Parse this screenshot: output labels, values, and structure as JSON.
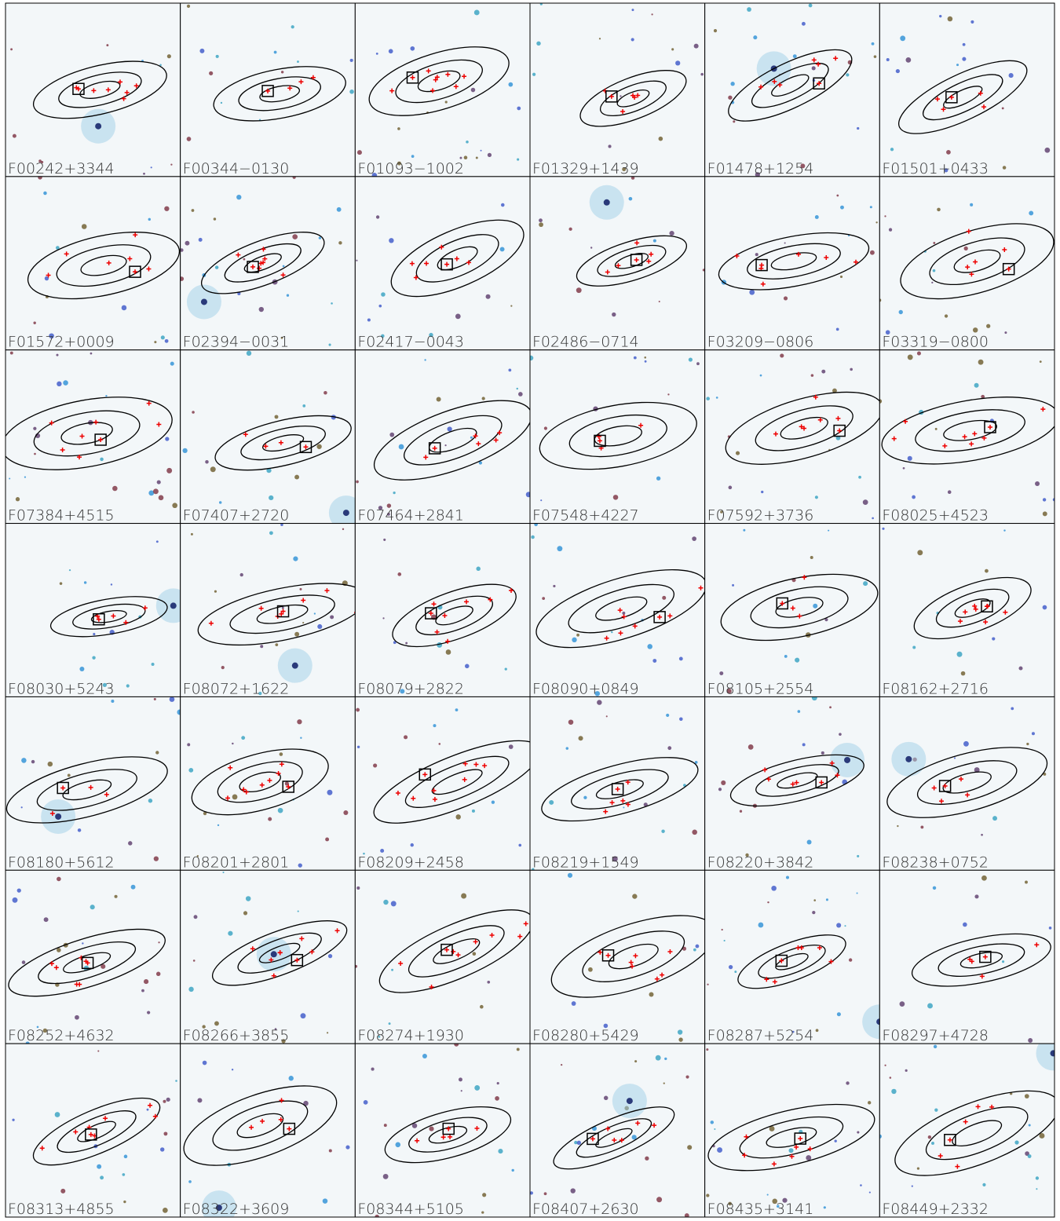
{
  "panels": [
    {
      "label": "F00242+3344"
    },
    {
      "label": "F00344−0130"
    },
    {
      "label": "F01093−1002"
    },
    {
      "label": "F01329+1439"
    },
    {
      "label": "F01478+1254"
    },
    {
      "label": "F01501+0433"
    },
    {
      "label": "F01572+0009"
    },
    {
      "label": "F02394−0031"
    },
    {
      "label": "F02417−0043"
    },
    {
      "label": "F02486−0714"
    },
    {
      "label": "F03209−0806"
    },
    {
      "label": "F03319−0800"
    },
    {
      "label": "F07384+4515"
    },
    {
      "label": "F07407+2720"
    },
    {
      "label": "F07464+2841"
    },
    {
      "label": "F07548+4227"
    },
    {
      "label": "F07592+3736"
    },
    {
      "label": "F08025+4523"
    },
    {
      "label": "F08030+5243"
    },
    {
      "label": "F08072+1622"
    },
    {
      "label": "F08079+2822"
    },
    {
      "label": "F08090+0849"
    },
    {
      "label": "F08105+2554"
    },
    {
      "label": "F08162+2716"
    },
    {
      "label": "F08180+5612"
    },
    {
      "label": "F08201+2801"
    },
    {
      "label": "F08209+2458"
    },
    {
      "label": "F08219+1549"
    },
    {
      "label": "F08220+3842"
    },
    {
      "label": "F08238+0752"
    },
    {
      "label": "F08252+4632"
    },
    {
      "label": "F08266+3855"
    },
    {
      "label": "F08274+1930"
    },
    {
      "label": "F08280+5429"
    },
    {
      "label": "F08287+5254"
    },
    {
      "label": "F08297+4728"
    },
    {
      "label": "F08313+4855"
    },
    {
      "label": "F08322+3609"
    },
    {
      "label": "F08344+5105"
    },
    {
      "label": "F08407+2630"
    },
    {
      "label": "F08435+3141"
    },
    {
      "label": "F08449+2332"
    }
  ]
}
